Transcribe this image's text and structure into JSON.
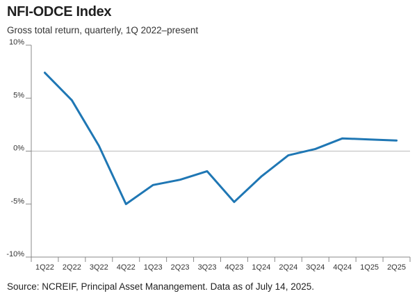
{
  "header": {
    "title": "NFI-ODCE Index",
    "subtitle": "Gross total return, quarterly, 1Q 2022–present"
  },
  "footer": {
    "source": "Source: NCREIF, Principal Asset Manangement. Data as of July 14, 2025."
  },
  "colors": {
    "line": "#1f77b4",
    "axis": "#888888",
    "zero_line": "#bbbbbb"
  },
  "chart_data": {
    "type": "line",
    "title": "NFI-ODCE Index",
    "subtitle": "Gross total return, quarterly, 1Q 2022–present",
    "xlabel": "",
    "ylabel": "",
    "categories": [
      "1Q22",
      "2Q22",
      "3Q22",
      "4Q22",
      "1Q23",
      "2Q23",
      "3Q23",
      "4Q23",
      "1Q24",
      "2Q24",
      "3Q24",
      "4Q24",
      "1Q25",
      "2Q25"
    ],
    "series": [
      {
        "values": [
          7.4,
          4.8,
          0.5,
          -5.0,
          -3.2,
          -2.7,
          -1.9,
          -4.8,
          -2.4,
          -0.4,
          0.2,
          1.2,
          1.1,
          1.0
        ]
      }
    ],
    "ylim": [
      -10,
      10
    ],
    "yticks": [
      10,
      5,
      0,
      -5,
      -10
    ],
    "ytick_labels": [
      "10%",
      "5%",
      "0%",
      "-5%",
      "-10%"
    ],
    "grid": false,
    "legend": "none"
  }
}
